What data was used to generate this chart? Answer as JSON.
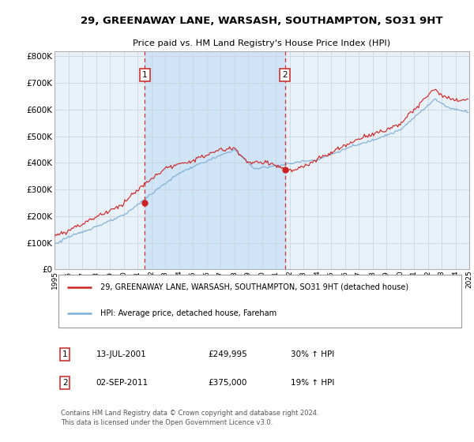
{
  "title": "29, GREENAWAY LANE, WARSASH, SOUTHAMPTON, SO31 9HT",
  "subtitle": "Price paid vs. HM Land Registry's House Price Index (HPI)",
  "plot_bg_color": "#e8f0f8",
  "highlight_color": "#d0e4f7",
  "hpi_color": "#7aaed6",
  "price_color": "#cc2222",
  "marker1_date": 2001.54,
  "marker1_price": 249995,
  "marker2_date": 2011.67,
  "marker2_price": 375000,
  "legend_line1": "29, GREENAWAY LANE, WARSASH, SOUTHAMPTON, SO31 9HT (detached house)",
  "legend_line2": "HPI: Average price, detached house, Fareham",
  "table_row1": [
    "1",
    "13-JUL-2001",
    "£249,995",
    "30% ↑ HPI"
  ],
  "table_row2": [
    "2",
    "02-SEP-2011",
    "£375,000",
    "19% ↑ HPI"
  ],
  "footer": "Contains HM Land Registry data © Crown copyright and database right 2024.\nThis data is licensed under the Open Government Licence v3.0.",
  "y_ticks": [
    0,
    100000,
    200000,
    300000,
    400000,
    500000,
    600000,
    700000,
    800000
  ],
  "y_tick_labels": [
    "£0",
    "£100K",
    "£200K",
    "£300K",
    "£400K",
    "£500K",
    "£600K",
    "£700K",
    "£800K"
  ]
}
